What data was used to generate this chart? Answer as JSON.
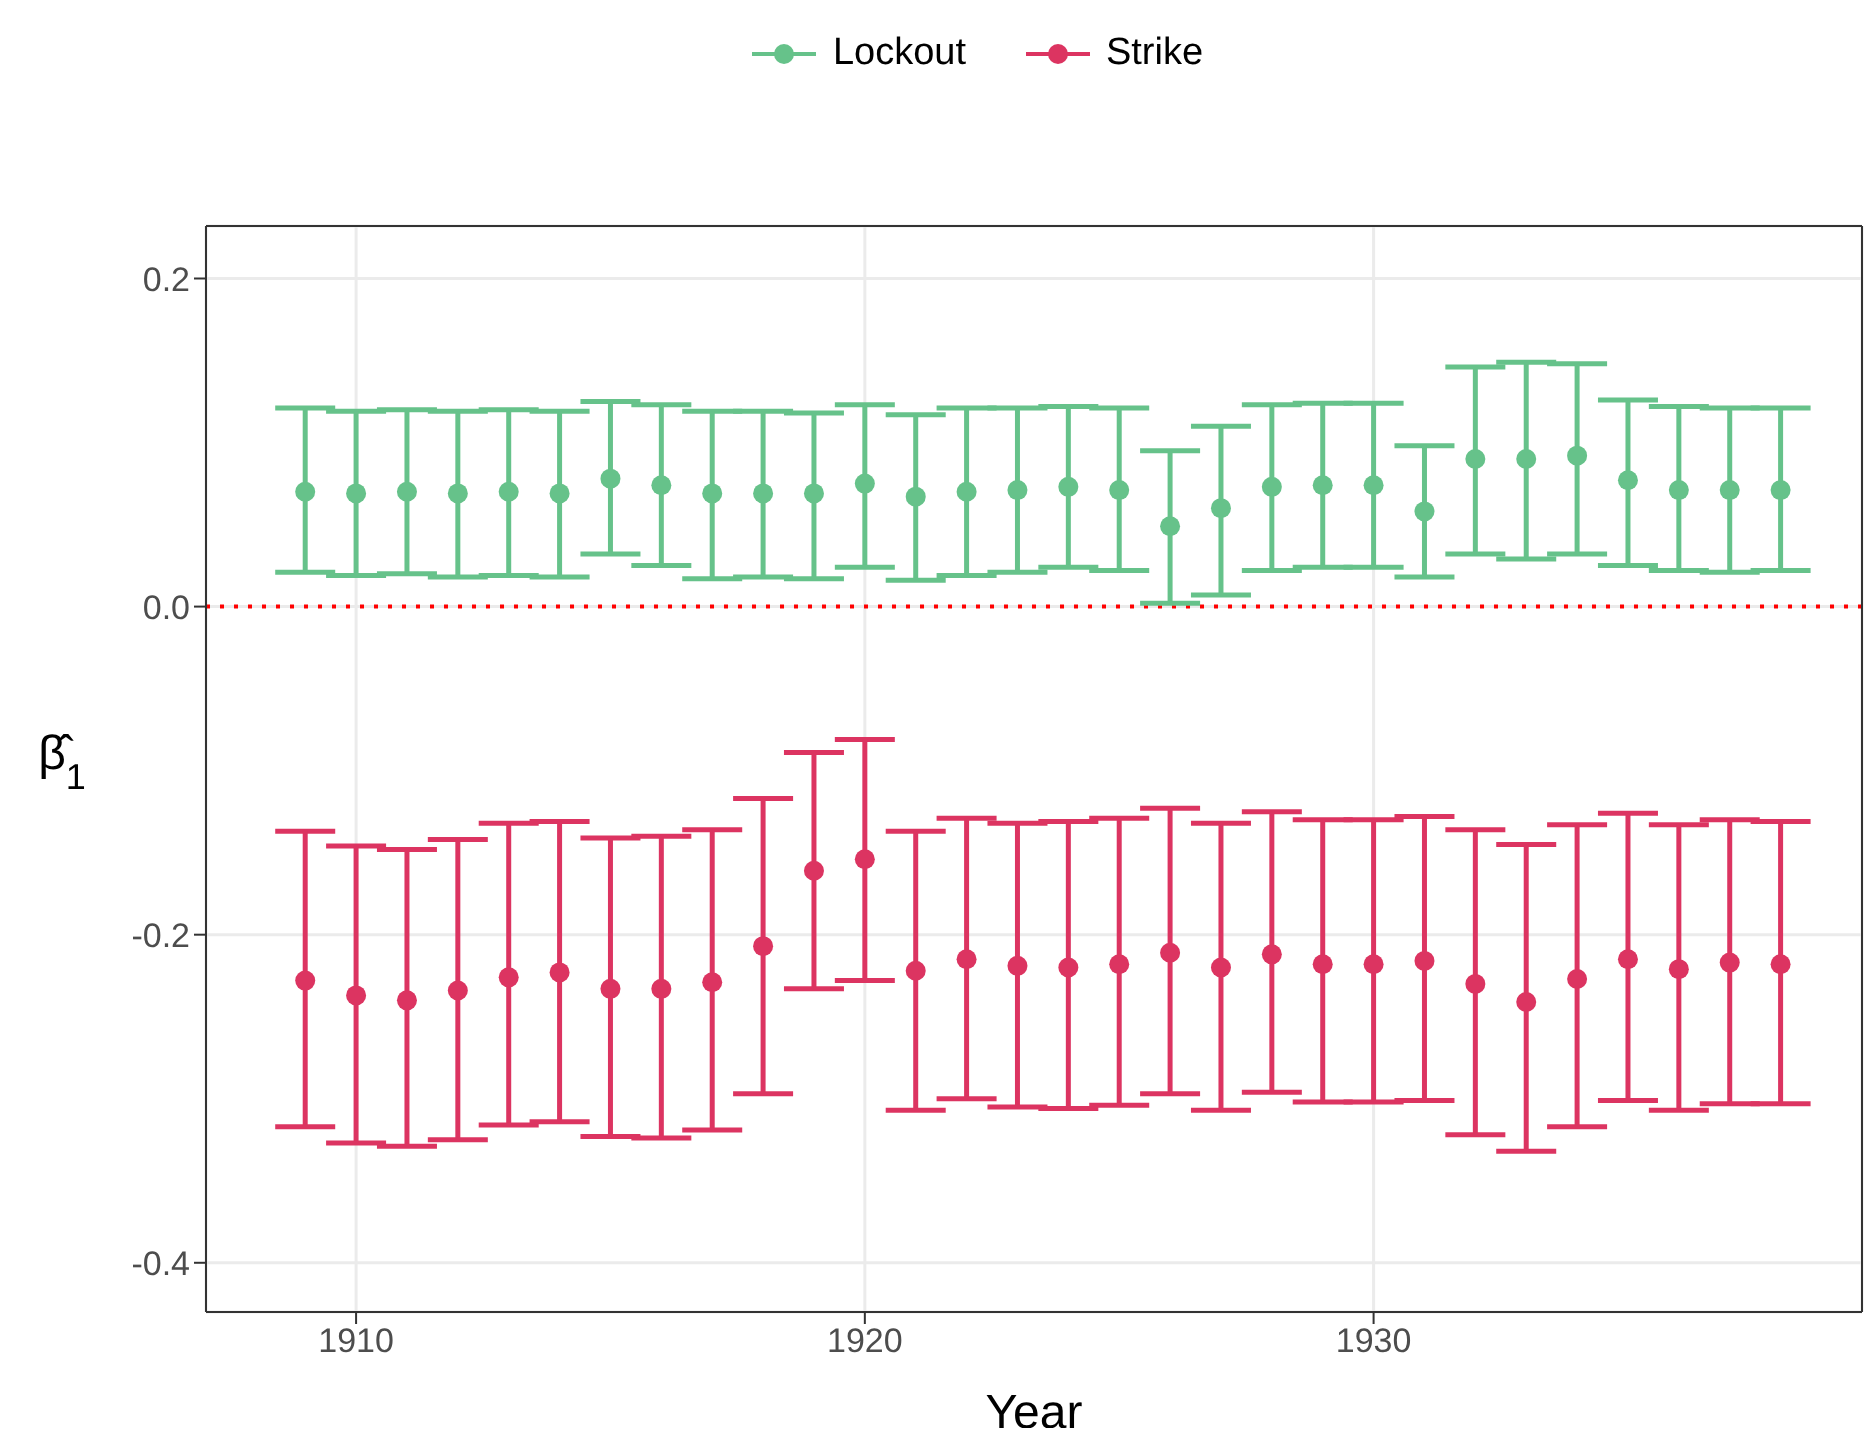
{
  "chart_data": {
    "type": "scatter",
    "xlabel": "Year",
    "ylabel": "β̂$_{1}$",
    "x": [
      1909,
      1910,
      1911,
      1912,
      1913,
      1914,
      1915,
      1916,
      1917,
      1918,
      1919,
      1920,
      1921,
      1922,
      1923,
      1924,
      1925,
      1926,
      1927,
      1928,
      1929,
      1930,
      1931,
      1932,
      1933,
      1934,
      1935,
      1936,
      1937,
      1938
    ],
    "series": [
      {
        "name": "Lockout",
        "color": "#66c28a",
        "values": [
          0.07,
          0.069,
          0.07,
          0.069,
          0.07,
          0.069,
          0.078,
          0.074,
          0.069,
          0.069,
          0.069,
          0.075,
          0.067,
          0.07,
          0.071,
          0.073,
          0.071,
          0.049,
          0.06,
          0.073,
          0.074,
          0.074,
          0.058,
          0.09,
          0.09,
          0.092,
          0.077,
          0.071,
          0.071,
          0.071
        ],
        "errors": [
          [
            0.021,
            0.121
          ],
          [
            0.019,
            0.119
          ],
          [
            0.02,
            0.12
          ],
          [
            0.018,
            0.119
          ],
          [
            0.019,
            0.12
          ],
          [
            0.018,
            0.119
          ],
          [
            0.032,
            0.125
          ],
          [
            0.025,
            0.123
          ],
          [
            0.017,
            0.119
          ],
          [
            0.018,
            0.119
          ],
          [
            0.017,
            0.118
          ],
          [
            0.024,
            0.123
          ],
          [
            0.016,
            0.117
          ],
          [
            0.019,
            0.121
          ],
          [
            0.021,
            0.121
          ],
          [
            0.024,
            0.122
          ],
          [
            0.022,
            0.121
          ],
          [
            0.002,
            0.095
          ],
          [
            0.007,
            0.11
          ],
          [
            0.022,
            0.123
          ],
          [
            0.024,
            0.124
          ],
          [
            0.024,
            0.124
          ],
          [
            0.018,
            0.098
          ],
          [
            0.032,
            0.146
          ],
          [
            0.029,
            0.149
          ],
          [
            0.032,
            0.148
          ],
          [
            0.025,
            0.126
          ],
          [
            0.022,
            0.122
          ],
          [
            0.021,
            0.121
          ],
          [
            0.022,
            0.121
          ]
        ]
      },
      {
        "name": "Strike",
        "color": "#dc3461",
        "values": [
          -0.228,
          -0.237,
          -0.24,
          -0.234,
          -0.226,
          -0.223,
          -0.233,
          -0.233,
          -0.229,
          -0.207,
          -0.161,
          -0.154,
          -0.222,
          -0.215,
          -0.219,
          -0.22,
          -0.218,
          -0.211,
          -0.22,
          -0.212,
          -0.218,
          -0.218,
          -0.216,
          -0.23,
          -0.241,
          -0.227,
          -0.215,
          -0.221,
          -0.217,
          -0.218
        ],
        "errors": [
          [
            -0.317,
            -0.137
          ],
          [
            -0.327,
            -0.146
          ],
          [
            -0.329,
            -0.148
          ],
          [
            -0.325,
            -0.142
          ],
          [
            -0.316,
            -0.132
          ],
          [
            -0.314,
            -0.131
          ],
          [
            -0.323,
            -0.141
          ],
          [
            -0.324,
            -0.14
          ],
          [
            -0.319,
            -0.136
          ],
          [
            -0.297,
            -0.117
          ],
          [
            -0.233,
            -0.089
          ],
          [
            -0.228,
            -0.081
          ],
          [
            -0.307,
            -0.137
          ],
          [
            -0.3,
            -0.129
          ],
          [
            -0.305,
            -0.132
          ],
          [
            -0.306,
            -0.131
          ],
          [
            -0.304,
            -0.129
          ],
          [
            -0.297,
            -0.123
          ],
          [
            -0.307,
            -0.132
          ],
          [
            -0.296,
            -0.125
          ],
          [
            -0.302,
            -0.13
          ],
          [
            -0.302,
            -0.13
          ],
          [
            -0.301,
            -0.128
          ],
          [
            -0.322,
            -0.136
          ],
          [
            -0.332,
            -0.145
          ],
          [
            -0.317,
            -0.133
          ],
          [
            -0.301,
            -0.126
          ],
          [
            -0.307,
            -0.133
          ],
          [
            -0.303,
            -0.13
          ],
          [
            -0.303,
            -0.131
          ]
        ]
      }
    ],
    "xlim": [
      1907.05,
      1939.6
    ],
    "xticks": [
      1910,
      1920,
      1930
    ],
    "ylim": [
      -0.43,
      0.232
    ],
    "yticks": [
      {
        "value": -0.4,
        "label": "-0.4"
      },
      {
        "value": -0.2,
        "label": "-0.2"
      },
      {
        "value": 0,
        "label": "0.0"
      },
      {
        "value": 0.2,
        "label": "0.2"
      }
    ],
    "ref_lines": [
      {
        "axis": "y",
        "value": 0,
        "color": "#ff0000",
        "line_style": "dotted"
      }
    ],
    "grid": true,
    "legend": "top",
    "marker": "circle"
  }
}
